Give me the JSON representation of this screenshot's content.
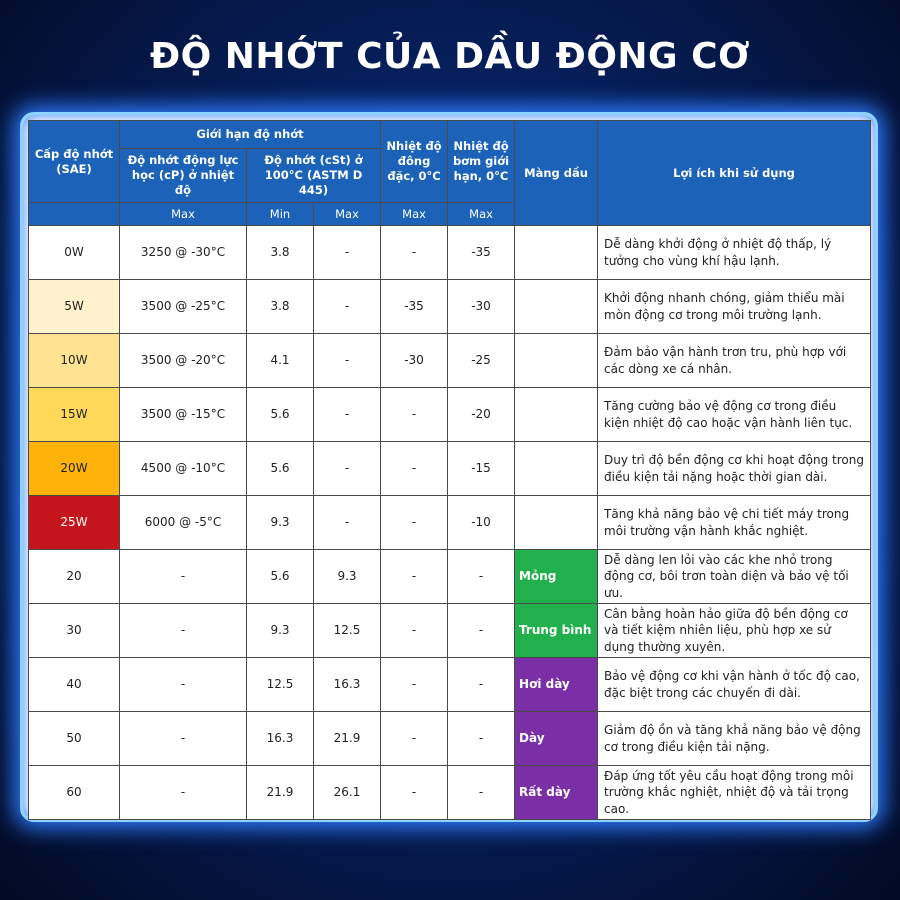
{
  "title": "ĐỘ NHỚT CỦA DẦU ĐỘNG CƠ",
  "table": {
    "header": {
      "grade": "Cấp độ nhớt (SAE)",
      "limits": "Giới hạn độ nhớt",
      "dynamic": "Độ nhớt động lực học (cP) ở nhiệt độ",
      "kinematic": "Độ nhớt (cSt) ở 100°C (ASTM D 445)",
      "pour": "Nhiệt độ đông đặc, 0°C",
      "pump": "Nhiệt độ bơm giới hạn, 0°C",
      "film": "Màng dầu",
      "benefit": "Lợi ích khi sử dụng",
      "sub": [
        "Max",
        "Min",
        "Max",
        "Max",
        "Max"
      ]
    },
    "rows": [
      [
        "0W",
        "3250 @ -30°C",
        "3.8",
        "-",
        "-",
        "-35",
        null,
        "Dễ dàng khởi động ở nhiệt độ thấp, lý tưởng cho vùng khí hậu lạnh."
      ],
      [
        "5W",
        "3500 @ -25°C",
        "3.8",
        "-",
        "-35",
        "-30",
        null,
        "Khởi động nhanh chóng, giảm thiểu mài mòn động cơ trong môi trường lạnh."
      ],
      [
        "10W",
        "3500 @ -20°C",
        "4.1",
        "-",
        "-30",
        "-25",
        null,
        "Đảm bảo vận hành trơn tru, phù hợp với các dòng xe cá nhân."
      ],
      [
        "15W",
        "3500 @ -15°C",
        "5.6",
        "-",
        "-",
        "-20",
        null,
        "Tăng cường bảo vệ động cơ trong điều kiện nhiệt độ cao hoặc vận hành liên tục."
      ],
      [
        "20W",
        "4500 @ -10°C",
        "5.6",
        "-",
        "-",
        "-15",
        null,
        "Duy trì độ bền động cơ khi hoạt động trong điều kiện tải nặng hoặc thời gian dài."
      ],
      [
        "25W",
        "6000 @ -5°C",
        "9.3",
        "-",
        "-",
        "-10",
        null,
        "Tăng khả năng bảo vệ chi tiết máy trong môi trường vận hành khắc nghiệt."
      ],
      [
        "20",
        "-",
        "5.6",
        "9.3",
        "-",
        "-",
        "Mỏng",
        "Dễ dàng len lỏi vào các khe nhỏ trong động cơ, bôi trơn toàn diện và bảo vệ tối ưu."
      ],
      [
        "30",
        "-",
        "9.3",
        "12.5",
        "-",
        "-",
        "Trung bình",
        "Cân bằng hoàn hảo giữa độ bền động cơ và tiết kiệm nhiên liệu, phù hợp xe sử dụng thường xuyên."
      ],
      [
        "40",
        "-",
        "12.5",
        "16.3",
        "-",
        "-",
        "Hơi dày",
        "Bảo vệ động cơ khi vận hành ở tốc độ cao, đặc biệt trong các chuyến đi dài."
      ],
      [
        "50",
        "-",
        "16.3",
        "21.9",
        "-",
        "-",
        "Dày",
        "Giảm độ ồn và tăng khả năng bảo vệ động cơ trong điều kiện tải nặng."
      ],
      [
        "60",
        "-",
        "21.9",
        "26.1",
        "-",
        "-",
        "Rất dày",
        "Đáp ứng tốt yêu cầu hoạt động trong môi trường khắc nghiệt, nhiệt độ và tải trọng cao."
      ]
    ]
  }
}
